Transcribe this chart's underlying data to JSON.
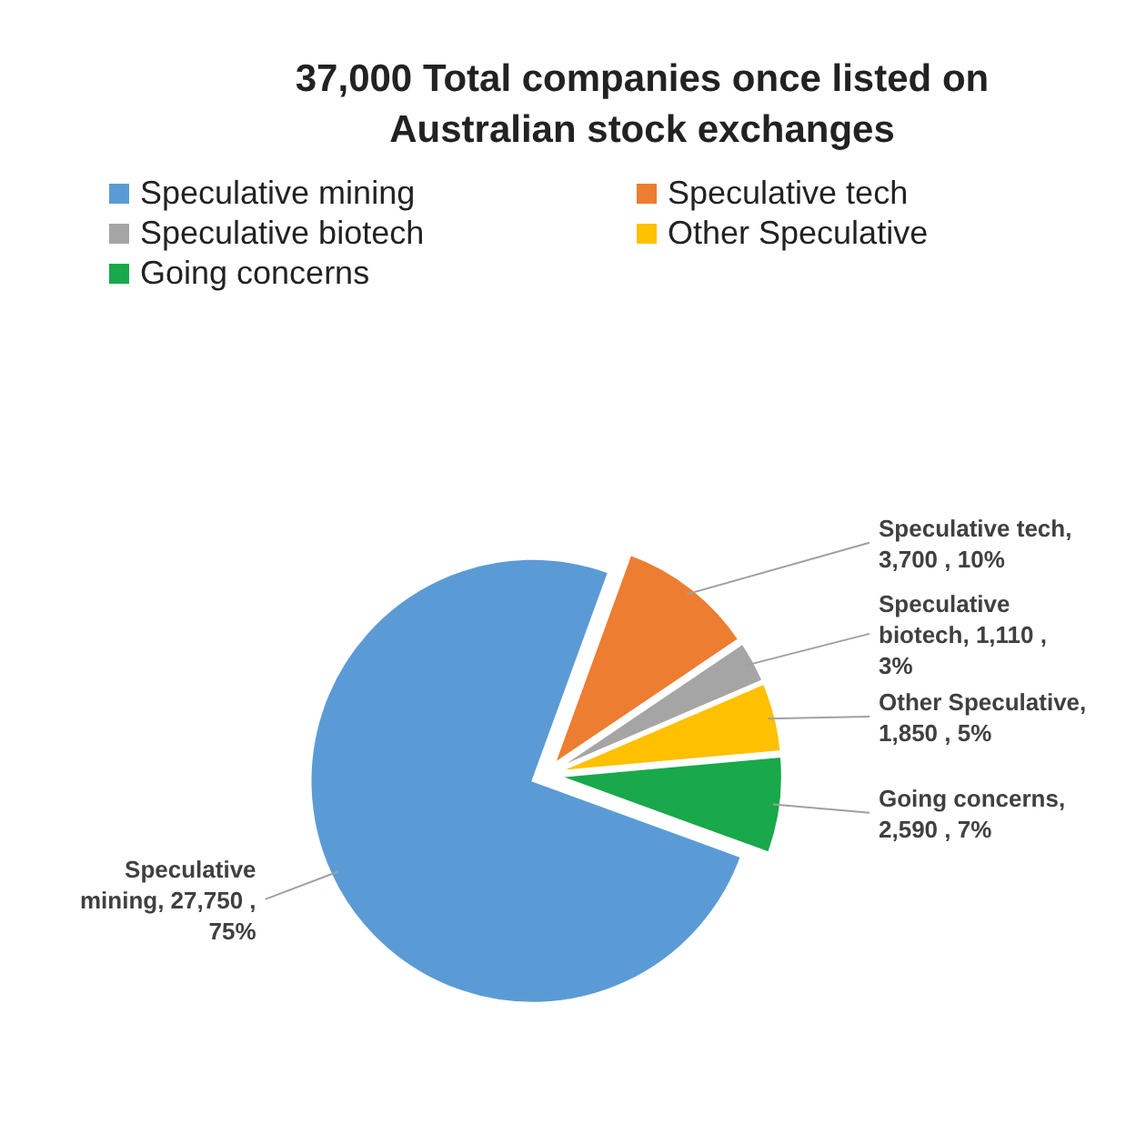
{
  "chart_data": {
    "type": "pie",
    "title": "37,000  Total companies once listed on Australian stock exchanges",
    "categories": [
      "Speculative mining",
      "Speculative tech",
      "Speculative biotech",
      "Other Speculative",
      "Going concerns"
    ],
    "values": [
      27750,
      3700,
      1110,
      1850,
      2590
    ],
    "colors": [
      "#5b9bd5",
      "#ed7d31",
      "#a5a5a5",
      "#ffc000",
      "#19a84a"
    ],
    "value_labels": [
      "Speculative mining, 27,750 , 75%",
      "Speculative tech, 3,700 , 10%",
      "Speculative biotech, 1,110 , 3%",
      "Other Speculative, 1,850 , 5%",
      "Going concerns, 2,590 , 7%"
    ],
    "legend": "top"
  }
}
